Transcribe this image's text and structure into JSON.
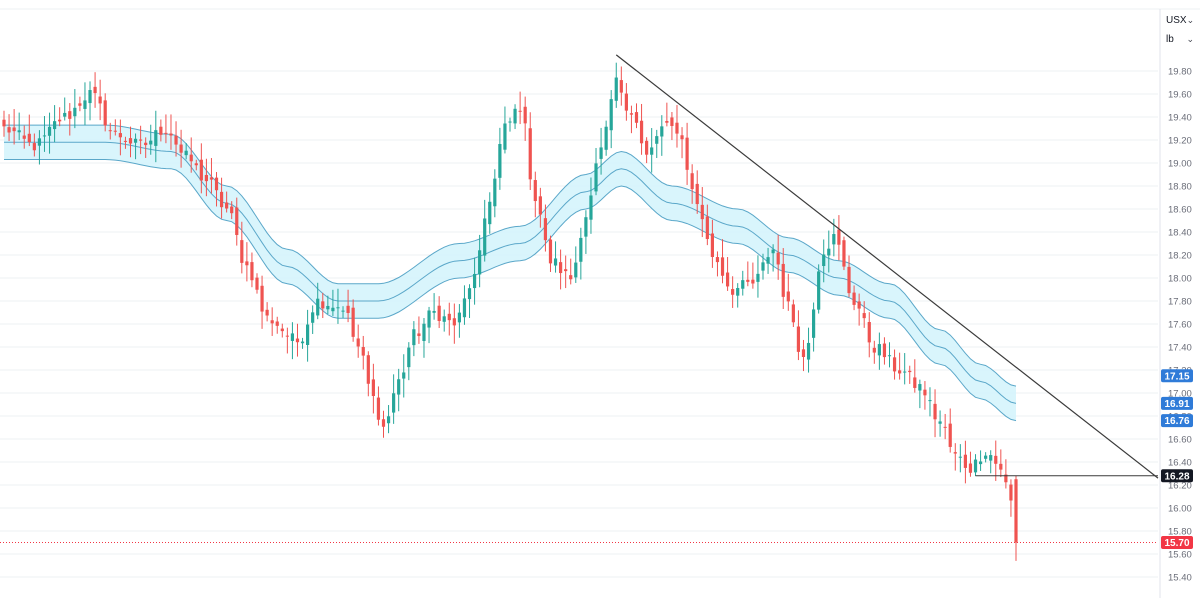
{
  "controls": {
    "currency": "USX",
    "unit": "lb"
  },
  "colors": {
    "up": "#26a69a",
    "down": "#ef5350",
    "band_fill": "#d2f3fb",
    "band_line": "#5aa7c9",
    "trendline": "#3a3a3a",
    "grid": "#eef0f3",
    "tag_blue": "#2f7bd8",
    "tag_black": "#131722",
    "tag_red": "#f23645"
  },
  "chart_data": {
    "type": "candlestick",
    "y_axis": {
      "ylim": [
        15.4,
        20.0
      ],
      "ticks": [
        "19.80",
        "19.60",
        "19.40",
        "19.20",
        "19.00",
        "18.80",
        "18.60",
        "18.40",
        "18.20",
        "18.00",
        "17.80",
        "17.60",
        "17.40",
        "17.20",
        "17.00",
        "16.80",
        "16.60",
        "16.40",
        "16.20",
        "16.00",
        "15.80",
        "15.60",
        "15.40"
      ],
      "position": "right"
    },
    "price_tags": [
      {
        "label": "17.15",
        "value": 17.15,
        "style": "blue"
      },
      {
        "label": "16.91",
        "value": 16.91,
        "style": "blue"
      },
      {
        "label": "16.76",
        "value": 16.76,
        "style": "blue"
      },
      {
        "label": "16.28",
        "value": 16.28,
        "style": "black"
      },
      {
        "label": "15.70",
        "value": 15.7,
        "style": "red"
      }
    ],
    "last_price": 15.7,
    "support_level": 16.28,
    "trendline": {
      "from": [
        0,
        19.94
      ],
      "to": [
        200,
        16.26
      ]
    },
    "band_keypoints": [
      [
        0,
        19.18
      ],
      [
        20,
        19.18
      ],
      [
        33,
        19.1
      ],
      [
        44,
        18.65
      ],
      [
        56,
        18.1
      ],
      [
        66,
        17.8
      ],
      [
        74,
        17.8
      ],
      [
        90,
        18.15
      ],
      [
        102,
        18.3
      ],
      [
        115,
        18.75
      ],
      [
        122,
        18.95
      ],
      [
        132,
        18.65
      ],
      [
        145,
        18.45
      ],
      [
        155,
        18.2
      ],
      [
        165,
        18.0
      ],
      [
        175,
        17.8
      ],
      [
        185,
        17.4
      ],
      [
        193,
        17.1
      ],
      [
        200,
        16.91
      ]
    ],
    "band_halfwidth": 0.15,
    "close_keypoints": [
      [
        0,
        19.3
      ],
      [
        6,
        19.15
      ],
      [
        12,
        19.4
      ],
      [
        17,
        19.6
      ],
      [
        22,
        19.25
      ],
      [
        27,
        19.15
      ],
      [
        32,
        19.3
      ],
      [
        36,
        19.05
      ],
      [
        40,
        18.85
      ],
      [
        44,
        18.6
      ],
      [
        48,
        18.1
      ],
      [
        52,
        17.65
      ],
      [
        58,
        17.45
      ],
      [
        62,
        17.8
      ],
      [
        67,
        17.75
      ],
      [
        70,
        17.4
      ],
      [
        73,
        16.95
      ],
      [
        75,
        16.7
      ],
      [
        78,
        17.1
      ],
      [
        81,
        17.5
      ],
      [
        85,
        17.7
      ],
      [
        89,
        17.6
      ],
      [
        93,
        18.0
      ],
      [
        96,
        18.7
      ],
      [
        99,
        19.3
      ],
      [
        102,
        19.5
      ],
      [
        105,
        18.7
      ],
      [
        108,
        18.15
      ],
      [
        112,
        18.0
      ],
      [
        115,
        18.55
      ],
      [
        118,
        19.1
      ],
      [
        121,
        19.7
      ],
      [
        124,
        19.45
      ],
      [
        127,
        19.05
      ],
      [
        130,
        19.3
      ],
      [
        133,
        19.3
      ],
      [
        137,
        18.65
      ],
      [
        140,
        18.2
      ],
      [
        144,
        17.9
      ],
      [
        148,
        17.95
      ],
      [
        152,
        18.25
      ],
      [
        155,
        17.75
      ],
      [
        158,
        17.3
      ],
      [
        162,
        18.25
      ],
      [
        164,
        18.35
      ],
      [
        168,
        17.8
      ],
      [
        172,
        17.4
      ],
      [
        177,
        17.2
      ],
      [
        181,
        17.05
      ],
      [
        185,
        16.75
      ],
      [
        188,
        16.45
      ],
      [
        191,
        16.35
      ],
      [
        194,
        16.5
      ],
      [
        197,
        16.35
      ],
      [
        199,
        16.05
      ]
    ],
    "final_candle": {
      "open": 16.25,
      "high": 16.28,
      "low": 15.54,
      "close": 15.7
    }
  }
}
